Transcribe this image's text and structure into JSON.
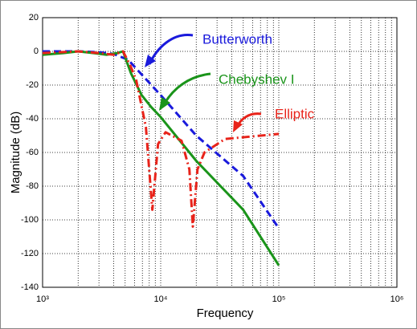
{
  "chart_data": {
    "type": "line",
    "xlabel": "Frequency",
    "ylabel": "Magnitude (dB)",
    "xscale": "log",
    "grid": true,
    "xlim": [
      1000,
      1000000
    ],
    "xticks": [
      {
        "value": 1000,
        "label": "10³"
      },
      {
        "value": 10000,
        "label": "10⁴"
      },
      {
        "value": 100000,
        "label": "10⁵"
      },
      {
        "value": 1000000,
        "label": "10⁶"
      }
    ],
    "ylim": [
      -140,
      20
    ],
    "yticks": [
      20,
      0,
      -20,
      -40,
      -60,
      -80,
      -100,
      -120,
      -140
    ],
    "series": [
      {
        "name": "Butterworth",
        "color": "#1a1adc",
        "dash": "dashed",
        "x": [
          1000,
          2000,
          3000,
          4000,
          5300,
          10000,
          20000,
          50000,
          100000
        ],
        "values": [
          0,
          0,
          -0.5,
          -1.5,
          -5,
          -26,
          -50,
          -74,
          -105
        ]
      },
      {
        "name": "Chebyshev I",
        "color": "#1a941a",
        "dash": "solid",
        "x": [
          1000,
          1500,
          2000,
          2700,
          3500,
          4300,
          4800,
          5600,
          6900,
          8300,
          10000,
          20000,
          50000,
          100000
        ],
        "values": [
          -2,
          -1,
          0,
          -1,
          -2,
          -1,
          0,
          -13,
          -26,
          -33,
          -39,
          -65,
          -94,
          -127
        ]
      },
      {
        "name": "Elliptic",
        "color": "#e8231a",
        "dash": "dashdot",
        "x": [
          1000,
          2000,
          3000,
          4000,
          4800,
          5500,
          6200,
          7500,
          8500,
          9500,
          11000,
          15000,
          17500,
          18700,
          20500,
          23500,
          35000,
          100000
        ],
        "values": [
          -1,
          0,
          -1,
          -2,
          0,
          -8,
          -17,
          -45,
          -94,
          -55,
          -48,
          -53,
          -70,
          -104,
          -70,
          -60,
          -52,
          -49
        ]
      }
    ]
  }
}
